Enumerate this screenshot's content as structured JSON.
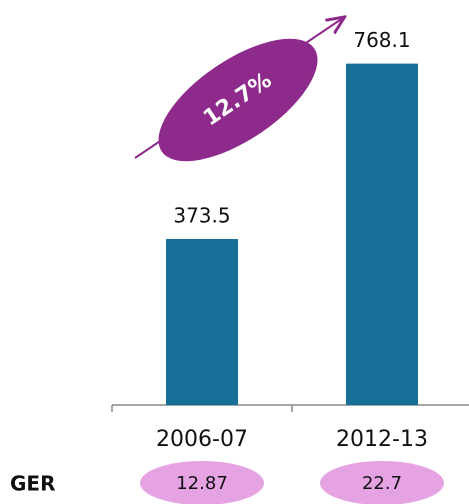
{
  "chart_data": {
    "type": "bar",
    "categories": [
      "2006-07",
      "2012-13"
    ],
    "values": [
      373.5,
      768.1
    ],
    "color": "#166f96",
    "ylim": [
      0,
      900
    ],
    "annotation": "12.7%",
    "annotation_color": "#8e2a8c",
    "row": {
      "label": "GER",
      "values": [
        12.87,
        22.7
      ],
      "color": "#e6a3e4"
    }
  }
}
